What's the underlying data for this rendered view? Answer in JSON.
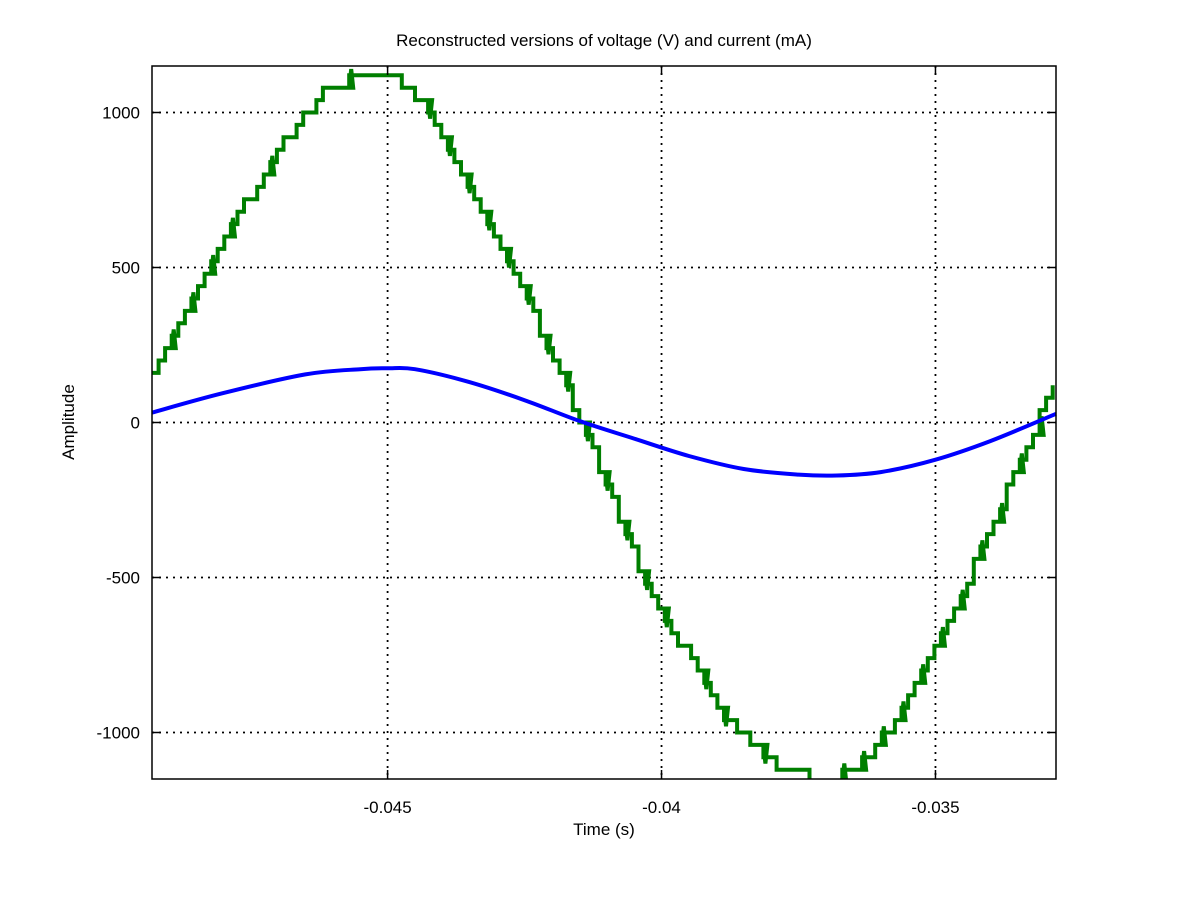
{
  "chart_data": {
    "type": "line",
    "title": "Reconstructed versions of voltage (V) and current (mA)",
    "xlabel": "Time (s)",
    "ylabel": "Amplitude",
    "xlim": [
      -0.0493,
      -0.0328
    ],
    "ylim": [
      -1150,
      1150
    ],
    "x_ticks": [
      -0.045,
      -0.04,
      -0.035
    ],
    "x_tick_labels": [
      "-0.045",
      "-0.04",
      "-0.035"
    ],
    "y_ticks": [
      1000,
      500,
      0,
      -500,
      -1000
    ],
    "y_tick_labels": [
      "1000",
      "500",
      "0",
      "-500",
      "-1000"
    ],
    "grid": true,
    "legend": "none",
    "series": [
      {
        "color": "#0000ff",
        "description_of_shape": "smooth sinusoid",
        "x": [
          -0.0493,
          -0.048,
          -0.0465,
          -0.0455,
          -0.045,
          -0.0445,
          -0.0435,
          -0.0425,
          -0.0415,
          -0.0405,
          -0.0395,
          -0.0385,
          -0.0375,
          -0.0368,
          -0.036,
          -0.035,
          -0.034,
          -0.0328
        ],
        "y": [
          32,
          95,
          155,
          172,
          175,
          172,
          130,
          72,
          5,
          -52,
          -108,
          -150,
          -168,
          -171,
          -160,
          -120,
          -60,
          28
        ]
      },
      {
        "color": "#007f00",
        "description_of_shape": "stepped sinusoid with spiky jitter",
        "x": [
          -0.0493,
          -0.0485,
          -0.0478,
          -0.047,
          -0.0462,
          -0.0455,
          -0.045,
          -0.0445,
          -0.044,
          -0.0433,
          -0.0425,
          -0.0418,
          -0.041,
          -0.0403,
          -0.0395,
          -0.0388,
          -0.038,
          -0.0373,
          -0.0368,
          -0.0362,
          -0.0355,
          -0.0348,
          -0.034,
          -0.0333,
          -0.0328
        ],
        "y": [
          170,
          420,
          650,
          880,
          1060,
          1120,
          1120,
          1060,
          900,
          680,
          410,
          130,
          -200,
          -520,
          -760,
          -960,
          -1100,
          -1140,
          -1150,
          -1080,
          -880,
          -660,
          -340,
          -60,
          160
        ]
      }
    ]
  }
}
